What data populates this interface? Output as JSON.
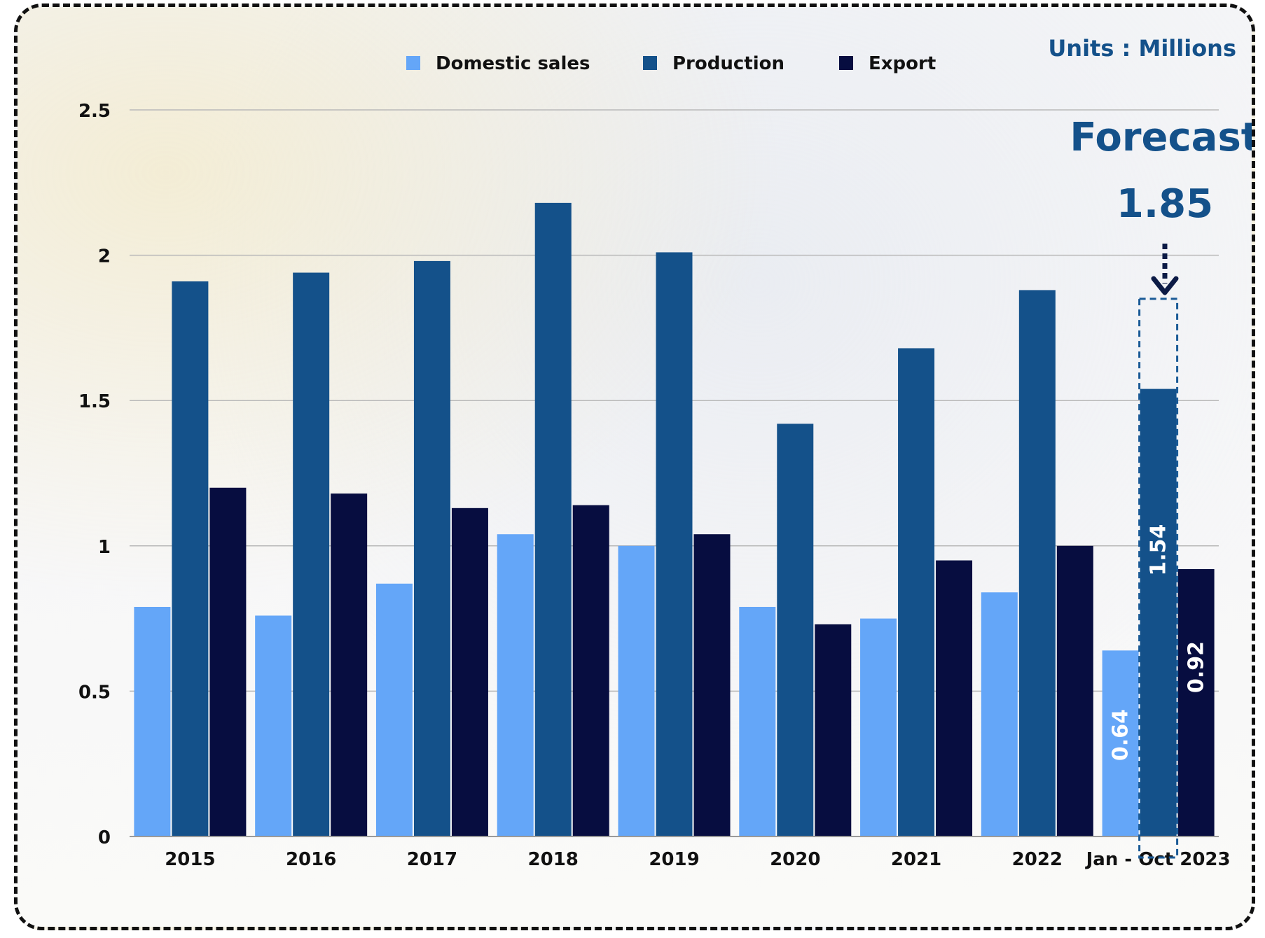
{
  "chart_data": {
    "type": "bar",
    "title": "",
    "units_label": "Units : Millions",
    "xlabel": "",
    "ylabel": "",
    "categories": [
      "2015",
      "2016",
      "2017",
      "2018",
      "2019",
      "2020",
      "2021",
      "2022",
      "Jan - Oct 2023"
    ],
    "series": [
      {
        "name": "Domestic sales",
        "color": "#64a6f8",
        "values": [
          0.79,
          0.76,
          0.87,
          1.04,
          1.0,
          0.79,
          0.75,
          0.84,
          0.64
        ]
      },
      {
        "name": "Production",
        "color": "#14518a",
        "values": [
          1.91,
          1.94,
          1.98,
          2.18,
          2.01,
          1.42,
          1.68,
          1.88,
          1.54
        ]
      },
      {
        "name": "Export",
        "color": "#070d40",
        "values": [
          1.2,
          1.18,
          1.13,
          1.14,
          1.04,
          0.73,
          0.95,
          1.0,
          0.92
        ]
      }
    ],
    "data_labels": {
      "category": "Jan - Oct 2023",
      "domestic": "0.64",
      "production": "1.54",
      "export": "0.92"
    },
    "forecast": {
      "label": "Forecast",
      "value_label": "1.85",
      "value": 1.85,
      "category": "Jan - Oct 2023",
      "series": "Production"
    },
    "yticks": [
      "0",
      "0.5",
      "1",
      "1.5",
      "2",
      "2.5"
    ],
    "ylim": [
      0,
      2.5
    ],
    "grid": true,
    "legend_position": "top-center"
  }
}
